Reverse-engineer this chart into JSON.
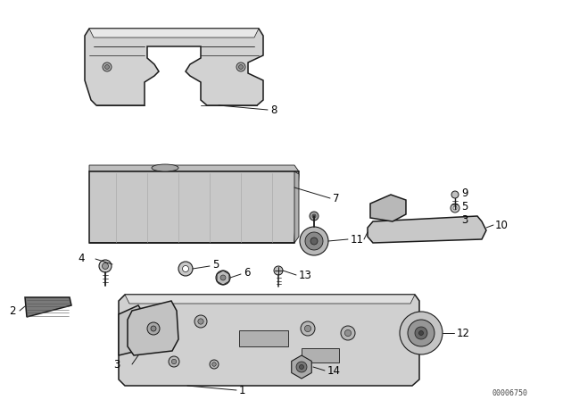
{
  "background_color": "#ffffff",
  "line_color": "#1a1a1a",
  "part_number_color": "#000000",
  "catalog_number": "00006750"
}
